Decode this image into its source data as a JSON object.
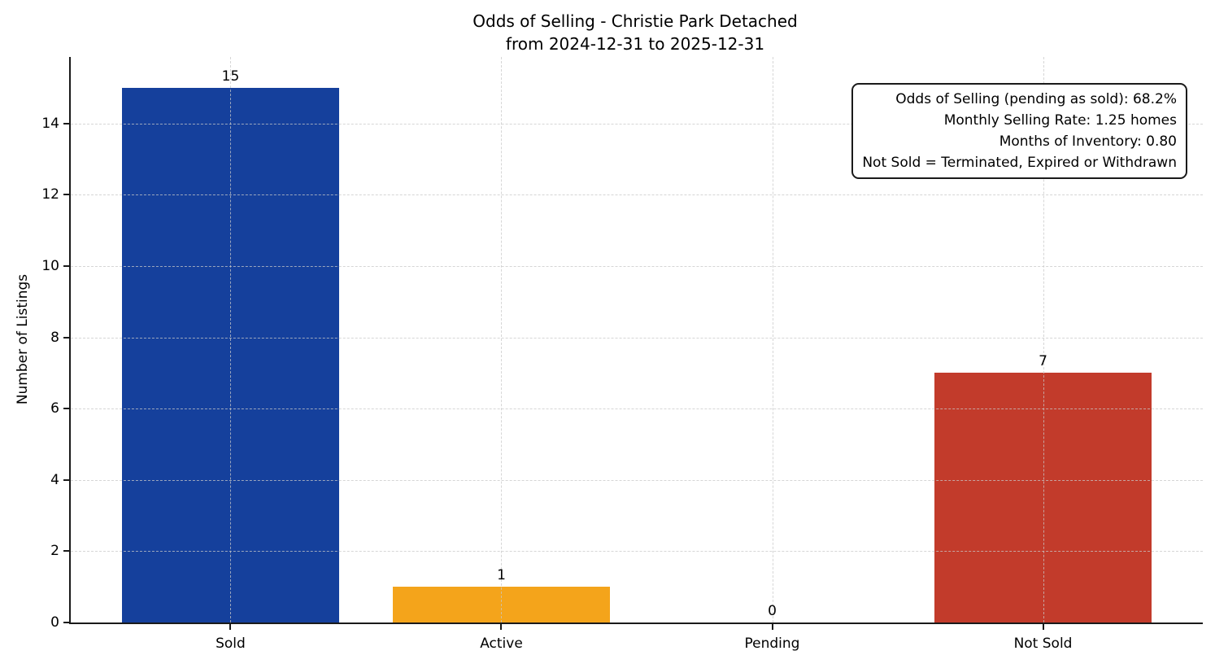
{
  "title": "Odds of Selling - Christie Park Detached",
  "subtitle": "from 2024-12-31 to 2025-12-31",
  "annotation": {
    "lines": [
      "Odds of Selling (pending as sold): 68.2%",
      "Monthly Selling Rate: 1.25 homes",
      "Months of Inventory: 0.80",
      "Not Sold = Terminated, Expired or Withdrawn"
    ]
  },
  "chart_data": {
    "type": "bar",
    "title": "Odds of Selling - Christie Park Detached",
    "subtitle": "from 2024-12-31 to 2025-12-31",
    "categories": [
      "Sold",
      "Active",
      "Pending",
      "Not Sold"
    ],
    "values": [
      15,
      1,
      0,
      7
    ],
    "bar_colors": [
      "#15409c",
      "#f4a41b",
      "#808080",
      "#c23b2b"
    ],
    "xlabel": "",
    "ylabel": "Number of Listings",
    "ylim": [
      0,
      15.87
    ],
    "xlim": [
      -0.59,
      3.59
    ],
    "bar_width": 0.8,
    "yticks": [
      0,
      2,
      4,
      6,
      8,
      10,
      12,
      14
    ],
    "grid": true,
    "grid_style": "dashed",
    "legend": "none",
    "annotations": [
      "Odds of Selling (pending as sold): 68.2%",
      "Monthly Selling Rate: 1.25 homes",
      "Months of Inventory: 0.80",
      "Not Sold = Terminated, Expired or Withdrawn"
    ]
  }
}
